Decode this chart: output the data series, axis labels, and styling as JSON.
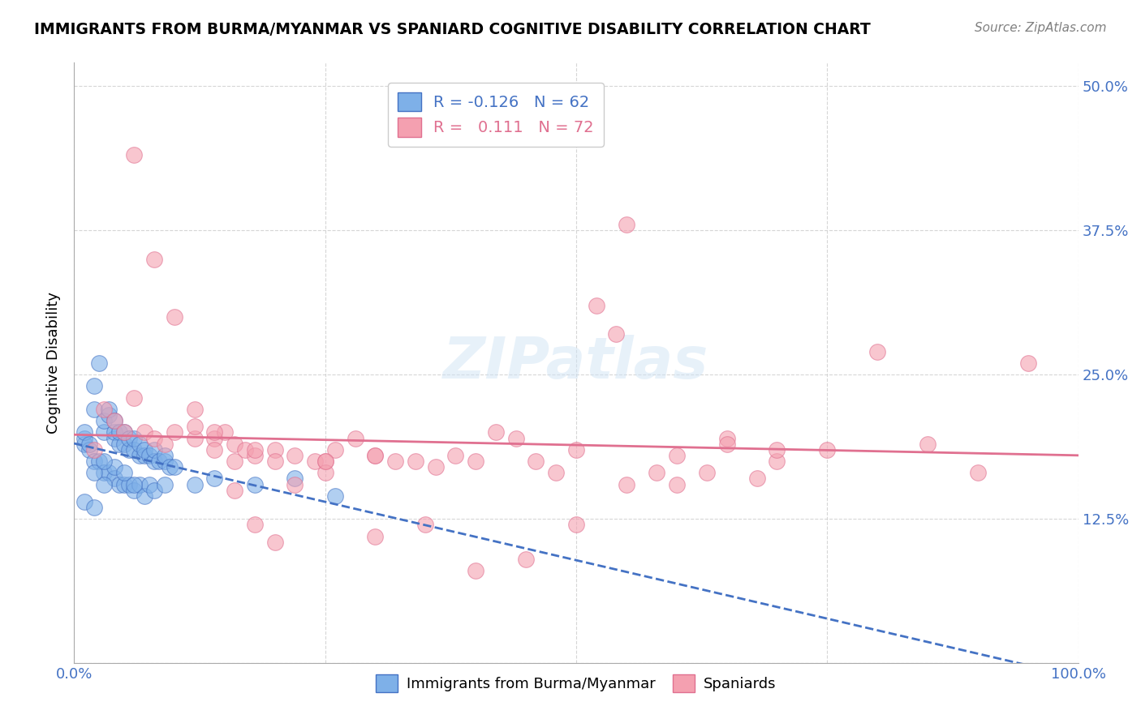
{
  "title": "IMMIGRANTS FROM BURMA/MYANMAR VS SPANIARD COGNITIVE DISABILITY CORRELATION CHART",
  "source": "Source: ZipAtlas.com",
  "ylabel": "Cognitive Disability",
  "xlabel": "",
  "xlim": [
    0.0,
    1.0
  ],
  "ylim": [
    0.0,
    0.52
  ],
  "yticks": [
    0.0,
    0.125,
    0.25,
    0.375,
    0.5
  ],
  "ytick_labels": [
    "",
    "12.5%",
    "25.0%",
    "37.5%",
    "50.0%"
  ],
  "xticks": [
    0.0,
    0.25,
    0.5,
    0.75,
    1.0
  ],
  "xtick_labels": [
    "0.0%",
    "",
    "",
    "",
    "100.0%"
  ],
  "blue_color": "#7EB0E8",
  "pink_color": "#F4A0B0",
  "blue_line_color": "#4472C4",
  "pink_line_color": "#E07090",
  "blue_R": -0.126,
  "blue_N": 62,
  "pink_R": 0.111,
  "pink_N": 72,
  "watermark": "ZIPatlas",
  "blue_scatter_x": [
    0.02,
    0.02,
    0.025,
    0.03,
    0.03,
    0.035,
    0.035,
    0.04,
    0.04,
    0.04,
    0.045,
    0.045,
    0.05,
    0.05,
    0.055,
    0.055,
    0.06,
    0.06,
    0.065,
    0.065,
    0.07,
    0.07,
    0.075,
    0.08,
    0.08,
    0.085,
    0.09,
    0.09,
    0.095,
    0.1,
    0.01,
    0.01,
    0.01,
    0.015,
    0.015,
    0.02,
    0.025,
    0.03,
    0.035,
    0.04,
    0.045,
    0.05,
    0.055,
    0.06,
    0.065,
    0.07,
    0.075,
    0.08,
    0.09,
    0.12,
    0.14,
    0.18,
    0.22,
    0.26,
    0.01,
    0.02,
    0.03,
    0.04,
    0.05,
    0.06,
    0.02,
    0.03
  ],
  "blue_scatter_y": [
    0.22,
    0.24,
    0.26,
    0.2,
    0.21,
    0.215,
    0.22,
    0.195,
    0.2,
    0.21,
    0.19,
    0.2,
    0.19,
    0.2,
    0.185,
    0.195,
    0.185,
    0.195,
    0.18,
    0.19,
    0.18,
    0.185,
    0.18,
    0.175,
    0.185,
    0.175,
    0.175,
    0.18,
    0.17,
    0.17,
    0.19,
    0.195,
    0.2,
    0.185,
    0.19,
    0.175,
    0.175,
    0.165,
    0.165,
    0.16,
    0.155,
    0.155,
    0.155,
    0.15,
    0.155,
    0.145,
    0.155,
    0.15,
    0.155,
    0.155,
    0.16,
    0.155,
    0.16,
    0.145,
    0.14,
    0.135,
    0.155,
    0.17,
    0.165,
    0.155,
    0.165,
    0.175
  ],
  "pink_scatter_x": [
    0.02,
    0.03,
    0.04,
    0.05,
    0.06,
    0.07,
    0.08,
    0.09,
    0.1,
    0.12,
    0.14,
    0.15,
    0.16,
    0.17,
    0.18,
    0.2,
    0.22,
    0.24,
    0.25,
    0.26,
    0.28,
    0.3,
    0.32,
    0.34,
    0.36,
    0.38,
    0.4,
    0.42,
    0.44,
    0.46,
    0.48,
    0.5,
    0.52,
    0.54,
    0.55,
    0.58,
    0.6,
    0.63,
    0.65,
    0.68,
    0.7,
    0.75,
    0.8,
    0.85,
    0.9,
    0.95,
    0.06,
    0.08,
    0.1,
    0.12,
    0.14,
    0.16,
    0.18,
    0.2,
    0.22,
    0.25,
    0.3,
    0.35,
    0.4,
    0.45,
    0.5,
    0.55,
    0.6,
    0.65,
    0.7,
    0.12,
    0.14,
    0.16,
    0.18,
    0.2,
    0.25,
    0.3
  ],
  "pink_scatter_y": [
    0.185,
    0.22,
    0.21,
    0.2,
    0.23,
    0.2,
    0.195,
    0.19,
    0.2,
    0.22,
    0.195,
    0.2,
    0.19,
    0.185,
    0.18,
    0.185,
    0.18,
    0.175,
    0.175,
    0.185,
    0.195,
    0.18,
    0.175,
    0.175,
    0.17,
    0.18,
    0.175,
    0.2,
    0.195,
    0.175,
    0.165,
    0.185,
    0.31,
    0.285,
    0.38,
    0.165,
    0.155,
    0.165,
    0.195,
    0.16,
    0.175,
    0.185,
    0.27,
    0.19,
    0.165,
    0.26,
    0.44,
    0.35,
    0.3,
    0.195,
    0.185,
    0.175,
    0.12,
    0.105,
    0.155,
    0.165,
    0.11,
    0.12,
    0.08,
    0.09,
    0.12,
    0.155,
    0.18,
    0.19,
    0.185,
    0.205,
    0.2,
    0.15,
    0.185,
    0.175,
    0.175,
    0.18
  ]
}
